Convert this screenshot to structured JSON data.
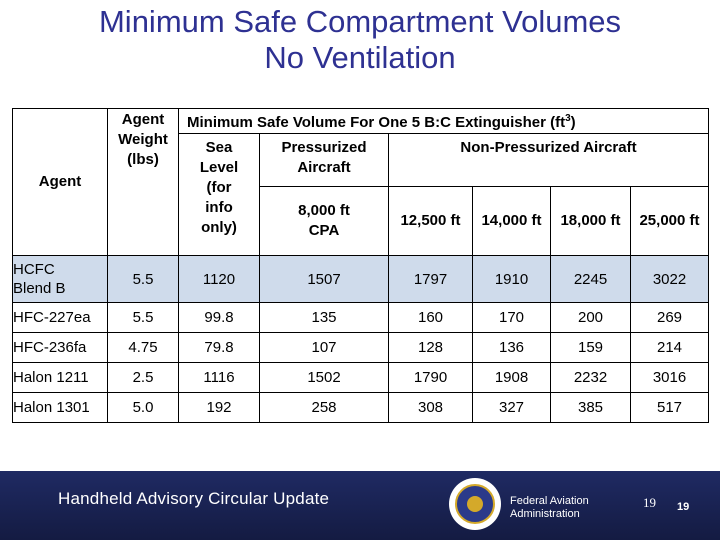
{
  "title": {
    "line1": "Minimum Safe Compartment Volumes",
    "line2": "No Ventilation"
  },
  "table": {
    "col_agent": "Agent",
    "col_weight": [
      "Agent",
      "Weight",
      "(lbs)"
    ],
    "group_header": "Minimum Safe Volume For One 5 B:C Extinguisher (ft",
    "group_header_sup": "3",
    "group_header_end": ")",
    "sea_level": [
      "Sea",
      "Level",
      "(for",
      "info",
      "only)"
    ],
    "pressurized": [
      "Pressurized",
      "Aircraft"
    ],
    "pressurized_sub": [
      "8,000 ft",
      "CPA"
    ],
    "non_pressurized": "Non-Pressurized Aircraft",
    "altitudes": [
      "12,500 ft",
      "14,000 ft",
      "18,000 ft",
      "25,000 ft"
    ],
    "rows": [
      {
        "agent": "HCFC Blend B",
        "agent_l1": "HCFC",
        "agent_l2": "Blend B",
        "weight": "5.5",
        "sea": "1120",
        "cpa": "1507",
        "a12500": "1797",
        "a14000": "1910",
        "a18000": "2245",
        "a25000": "3022"
      },
      {
        "agent": "HFC-227ea",
        "weight": "5.5",
        "sea": "99.8",
        "cpa": "135",
        "a12500": "160",
        "a14000": "170",
        "a18000": "200",
        "a25000": "269"
      },
      {
        "agent": "HFC-236fa",
        "weight": "4.75",
        "sea": "79.8",
        "cpa": "107",
        "a12500": "128",
        "a14000": "136",
        "a18000": "159",
        "a25000": "214"
      },
      {
        "agent": "Halon 1211",
        "weight": "2.5",
        "sea": "1116",
        "cpa": "1502",
        "a12500": "1790",
        "a14000": "1908",
        "a18000": "2232",
        "a25000": "3016"
      },
      {
        "agent": "Halon 1301",
        "weight": "5.0",
        "sea": "192",
        "cpa": "258",
        "a12500": "308",
        "a14000": "327",
        "a18000": "385",
        "a25000": "517"
      }
    ]
  },
  "footer": {
    "title": "Handheld Advisory Circular Update",
    "org_line1": "Federal Aviation",
    "org_line2": "Administration",
    "page_a": "19",
    "page_b": "19"
  },
  "colors": {
    "title": "#2e3192",
    "footer_bg": "#1b2456",
    "shade": "#cfdbeb",
    "seal_gold": "#d4a92a"
  }
}
